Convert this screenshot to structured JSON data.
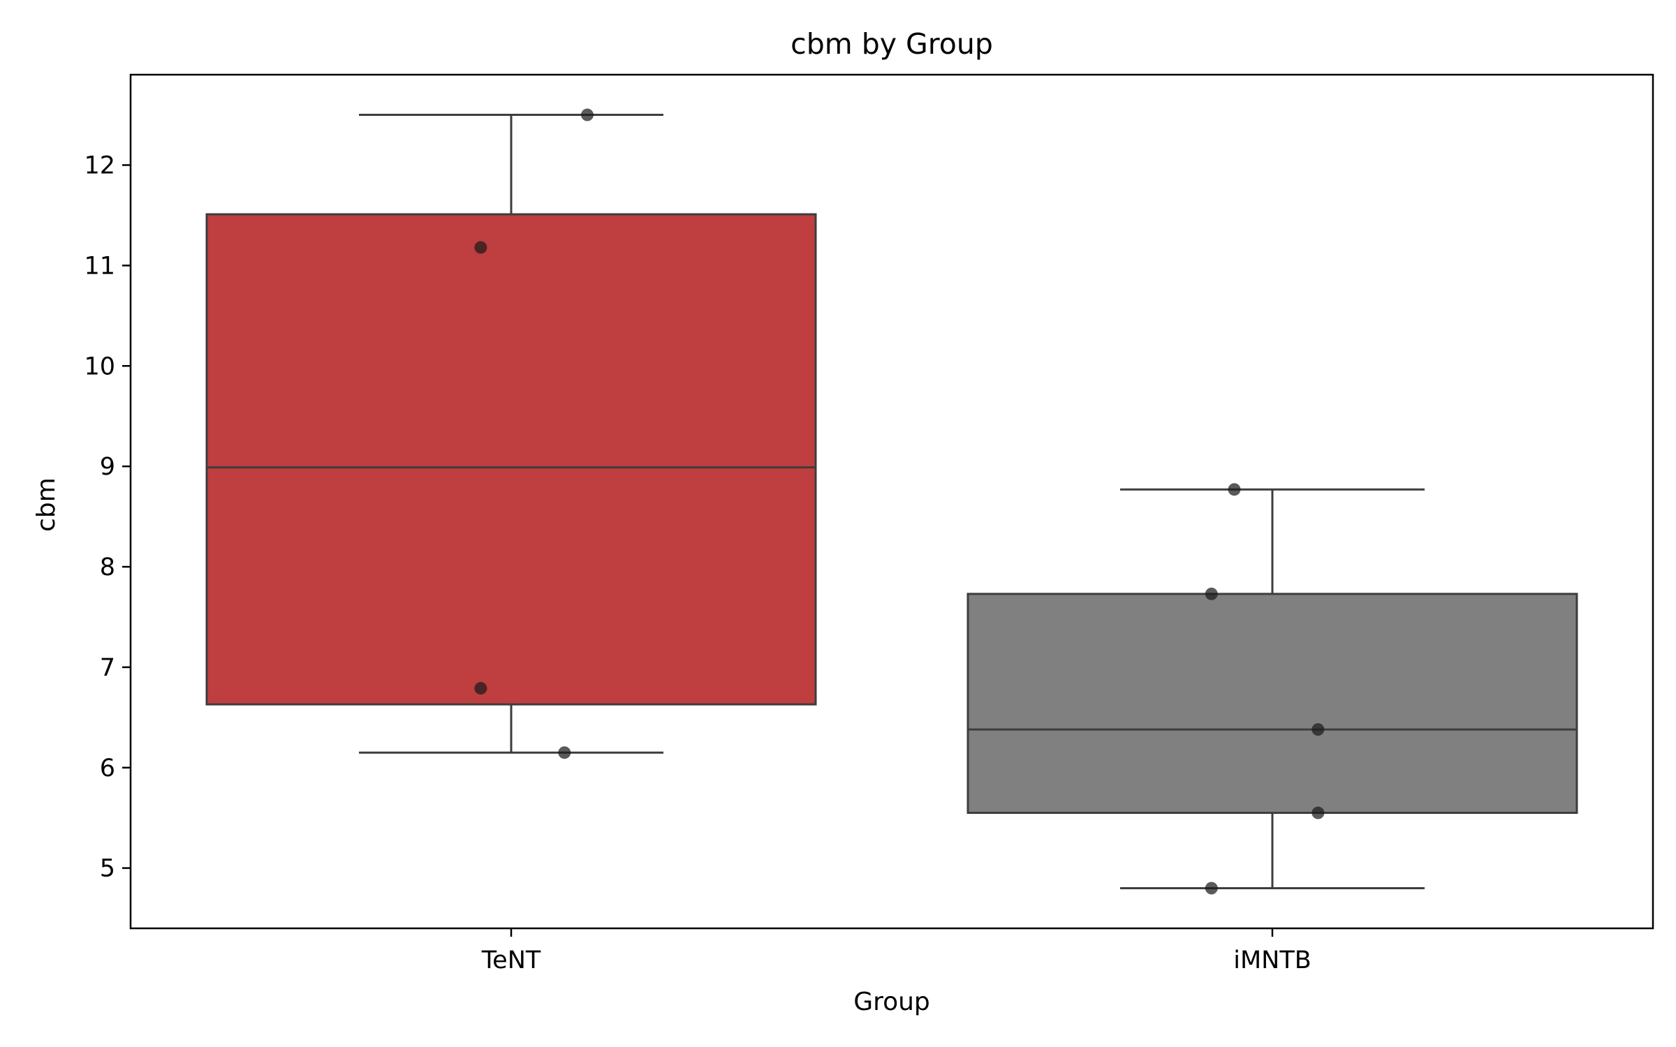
{
  "chart_data": {
    "type": "box",
    "title": "cbm by Group",
    "xlabel": "Group",
    "ylabel": "cbm",
    "ylim": [
      4.4,
      12.9
    ],
    "yticks": [
      5,
      6,
      7,
      8,
      9,
      10,
      11,
      12
    ],
    "grid": false,
    "categories": [
      "TeNT",
      "iMNTB"
    ],
    "colors": {
      "TeNT": "#bf3e3f",
      "iMNTB": "#808080",
      "edge": "#3d3d3d",
      "points": "#1a1a1a"
    },
    "boxes": [
      {
        "name": "TeNT",
        "whisker_low": 6.15,
        "q1": 6.63,
        "median": 8.99,
        "q3": 11.51,
        "whisker_high": 12.5,
        "points": [
          12.5,
          11.18,
          6.79,
          6.15
        ],
        "jitter": [
          0.1,
          -0.04,
          -0.04,
          0.07
        ]
      },
      {
        "name": "iMNTB",
        "whisker_low": 4.8,
        "q1": 5.55,
        "median": 6.38,
        "q3": 7.73,
        "whisker_high": 8.77,
        "points": [
          8.77,
          7.73,
          6.38,
          5.55,
          4.8
        ],
        "jitter": [
          -0.05,
          -0.08,
          0.06,
          0.06,
          -0.08
        ]
      }
    ]
  }
}
